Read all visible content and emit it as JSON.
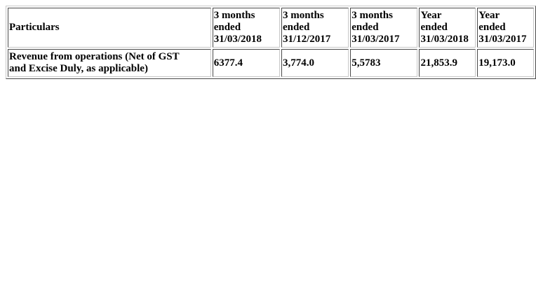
{
  "table": {
    "header": {
      "particulars": "Particulars",
      "columns": [
        {
          "line1": "3 months",
          "line2": "ended",
          "line3": "31/03/2018"
        },
        {
          "line1": "3 months",
          "line2": "ended",
          "line3": "31/12/2017"
        },
        {
          "line1": "3 months",
          "line2": "ended",
          "line3": "31/03/2017"
        },
        {
          "line1": "Year",
          "line2": "ended",
          "line3": "31/03/2018"
        },
        {
          "line1": "Year",
          "line2": "ended",
          "line3": "31/03/2017"
        }
      ]
    },
    "rows": [
      {
        "particular_line1": "Revenue from operations (Net of GST",
        "particular_line2": "and Excise Duly, as applicable)",
        "values": [
          "6377.4",
          "3,774.0",
          "5,5783",
          "21,853.9",
          "19,173.0"
        ]
      }
    ]
  }
}
